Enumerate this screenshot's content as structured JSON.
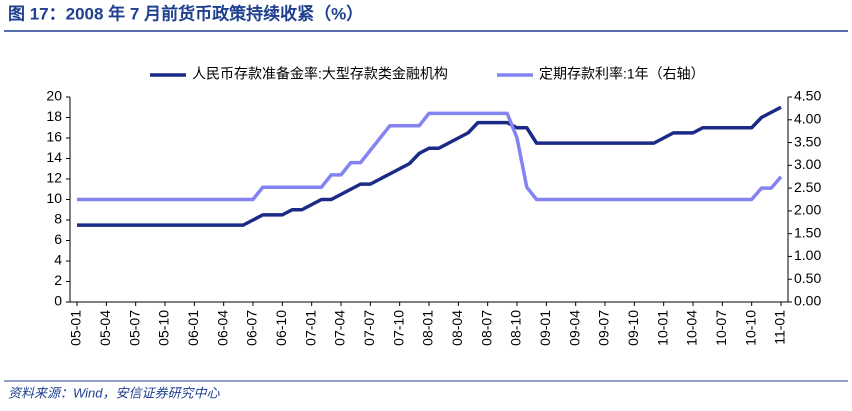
{
  "chart_data": {
    "type": "line",
    "title": "图 17：2008 年 7 月前货币政策持续收紧（%）",
    "source": "资料来源：Wind，安信证券研究中心",
    "categories": [
      "05-01",
      null,
      null,
      "05-04",
      null,
      null,
      "05-07",
      null,
      null,
      "05-10",
      null,
      null,
      "06-01",
      null,
      null,
      "06-04",
      null,
      null,
      "06-07",
      null,
      null,
      "06-10",
      null,
      null,
      "07-01",
      null,
      null,
      "07-04",
      null,
      null,
      "07-07",
      null,
      null,
      "07-10",
      null,
      null,
      "08-01",
      null,
      null,
      "08-04",
      null,
      null,
      "08-07",
      null,
      null,
      "08-10",
      null,
      null,
      "09-01",
      null,
      null,
      "09-04",
      null,
      null,
      "09-07",
      null,
      null,
      "09-10",
      null,
      null,
      "10-01",
      null,
      null,
      "10-04",
      null,
      null,
      "10-07",
      null,
      null,
      "10-10",
      null,
      null,
      "11-01"
    ],
    "series": [
      {
        "name": "人民币存款准备金率:大型存款类金融机构",
        "color": "#1c2a87",
        "values": [
          7.5,
          7.5,
          7.5,
          7.5,
          7.5,
          7.5,
          7.5,
          7.5,
          7.5,
          7.5,
          7.5,
          7.5,
          7.5,
          7.5,
          7.5,
          7.5,
          7.5,
          7.5,
          8,
          8.5,
          8.5,
          8.5,
          9,
          9,
          9.5,
          10,
          10,
          10.5,
          11,
          11.5,
          11.5,
          12,
          12.5,
          13,
          13.5,
          14.5,
          15,
          15,
          15.5,
          16,
          16.5,
          17.5,
          17.5,
          17.5,
          17.5,
          17,
          17,
          15.5,
          15.5,
          15.5,
          15.5,
          15.5,
          15.5,
          15.5,
          15.5,
          15.5,
          15.5,
          15.5,
          15.5,
          15.5,
          16,
          16.5,
          16.5,
          16.5,
          17,
          17,
          17,
          17,
          17,
          17,
          18,
          18.5,
          19
        ]
      },
      {
        "name": "定期存款利率:1年（右轴）",
        "color": "#8383f2",
        "axis": "y2",
        "values": [
          2.25,
          2.25,
          2.25,
          2.25,
          2.25,
          2.25,
          2.25,
          2.25,
          2.25,
          2.25,
          2.25,
          2.25,
          2.25,
          2.25,
          2.25,
          2.25,
          2.25,
          2.25,
          2.25,
          2.52,
          2.52,
          2.52,
          2.52,
          2.52,
          2.52,
          2.52,
          2.79,
          2.79,
          3.06,
          3.06,
          3.33,
          3.6,
          3.87,
          3.87,
          3.87,
          3.87,
          4.14,
          4.14,
          4.14,
          4.14,
          4.14,
          4.14,
          4.14,
          4.14,
          4.14,
          3.6,
          2.52,
          2.25,
          2.25,
          2.25,
          2.25,
          2.25,
          2.25,
          2.25,
          2.25,
          2.25,
          2.25,
          2.25,
          2.25,
          2.25,
          2.25,
          2.25,
          2.25,
          2.25,
          2.25,
          2.25,
          2.25,
          2.25,
          2.25,
          2.25,
          2.5,
          2.5,
          2.75
        ]
      }
    ],
    "ylim": [
      0,
      20
    ],
    "yticks": [
      0,
      2,
      4,
      6,
      8,
      10,
      12,
      14,
      16,
      18,
      20
    ],
    "y2lim": [
      0,
      4.5
    ],
    "y2ticks": [
      {
        "value": 0,
        "label": "0.00"
      },
      {
        "value": 0.5,
        "label": "0.50"
      },
      {
        "value": 1,
        "label": "1.00"
      },
      {
        "value": 1.5,
        "label": "1.50"
      },
      {
        "value": 2,
        "label": "2.00"
      },
      {
        "value": 2.5,
        "label": "2.50"
      },
      {
        "value": 3,
        "label": "3.00"
      },
      {
        "value": 3.5,
        "label": "3.50"
      },
      {
        "value": 4,
        "label": "4.00"
      },
      {
        "value": 4.5,
        "label": "4.50"
      }
    ],
    "legend": "top",
    "grid": false
  }
}
